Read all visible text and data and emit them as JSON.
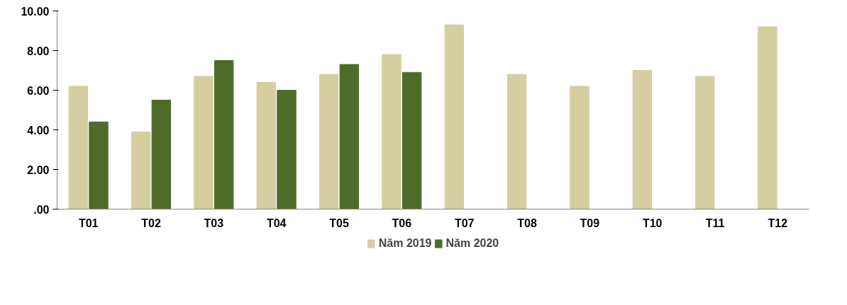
{
  "chart_data": {
    "type": "bar",
    "categories": [
      "T01",
      "T02",
      "T03",
      "T04",
      "T05",
      "T06",
      "T07",
      "T08",
      "T09",
      "T10",
      "T11",
      "T12"
    ],
    "series": [
      {
        "name": "Năm 2019",
        "color": "#d4cea0",
        "values": [
          6.2,
          3.9,
          6.7,
          6.4,
          6.8,
          7.8,
          9.3,
          6.8,
          6.2,
          7.0,
          6.7,
          9.2
        ]
      },
      {
        "name": "Năm 2020",
        "color": "#4f6b2a",
        "values": [
          4.4,
          5.5,
          7.5,
          6.0,
          7.3,
          6.9,
          null,
          null,
          null,
          null,
          null,
          null
        ]
      }
    ],
    "ylim": [
      0,
      10
    ],
    "yticks": [
      {
        "value": 0,
        "label": ".00"
      },
      {
        "value": 2,
        "label": "2.00"
      },
      {
        "value": 4,
        "label": "4.00"
      },
      {
        "value": 6,
        "label": "6.00"
      },
      {
        "value": 8,
        "label": "8.00"
      },
      {
        "value": 10,
        "label": "10.00"
      }
    ],
    "grid": false,
    "legend": "bottom"
  }
}
